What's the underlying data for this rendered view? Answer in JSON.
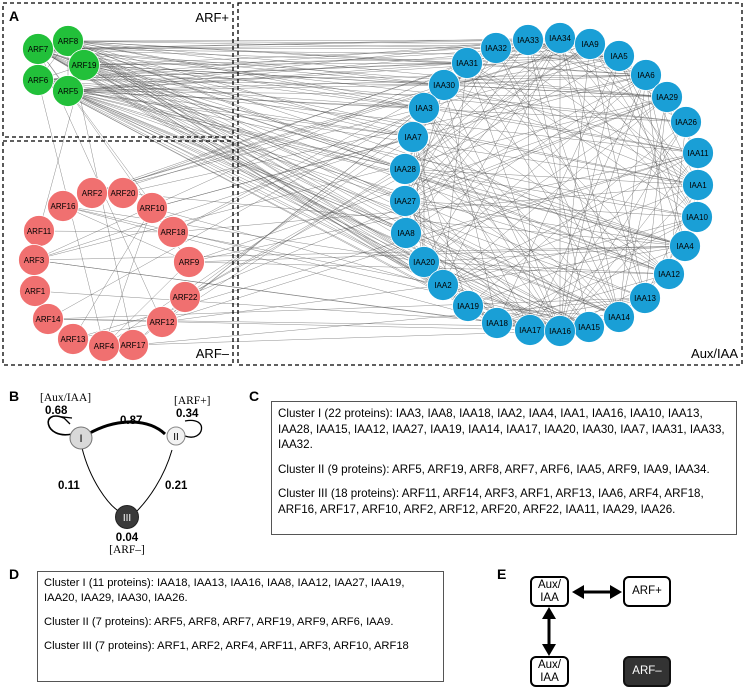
{
  "panel_a": {
    "letter": "A",
    "group_labels": {
      "arf_plus": "ARF+",
      "arf_minus": "ARF–",
      "aux_iaa": "Aux/IAA"
    },
    "colors": {
      "arf_plus": "#22c03a",
      "arf_minus": "#f07070",
      "aux_iaa": "#1a9fd6",
      "edge": "#555555"
    },
    "arf_plus_nodes": [
      "ARF7",
      "ARF8",
      "ARF19",
      "ARF6",
      "ARF5"
    ],
    "arf_minus_nodes": [
      "ARF2",
      "ARF20",
      "ARF16",
      "ARF10",
      "ARF11",
      "ARF18",
      "ARF3",
      "ARF9",
      "ARF1",
      "ARF22",
      "ARF14",
      "ARF12",
      "ARF13",
      "ARF17",
      "ARF4"
    ],
    "aux_iaa_nodes": [
      "IAA33",
      "IAA34",
      "IAA32",
      "IAA9",
      "IAA5",
      "IAA31",
      "IAA30",
      "IAA6",
      "IAA29",
      "IAA3",
      "IAA26",
      "IAA7",
      "IAA11",
      "IAA28",
      "IAA1",
      "IAA27",
      "IAA10",
      "IAA8",
      "IAA4",
      "IAA20",
      "IAA12",
      "IAA2",
      "IAA13",
      "IAA19",
      "IAA14",
      "IAA18",
      "IAA15",
      "IAA17",
      "IAA16"
    ]
  },
  "panel_b": {
    "letter": "B",
    "nodes": [
      {
        "id": "I",
        "label": "I",
        "annotation": "[Aux/IAA]",
        "self_weight": "0.68"
      },
      {
        "id": "II",
        "label": "II",
        "annotation": "[ARF+]",
        "self_weight": "0.34"
      },
      {
        "id": "III",
        "label": "III",
        "annotation": "[ARF–]",
        "self_weight": "0.04"
      }
    ],
    "edges": [
      {
        "from": "I",
        "to": "II",
        "weight": "0.87"
      },
      {
        "from": "I",
        "to": "III",
        "weight": "0.11"
      },
      {
        "from": "II",
        "to": "III",
        "weight": "0.21"
      }
    ]
  },
  "panel_c": {
    "letter": "C",
    "clusters": [
      "Cluster I (22 proteins): IAA3, IAA8, IAA18, IAA2, IAA4, IAA1, IAA16, IAA10, IAA13, IAA28, IAA15, IAA12, IAA27, IAA19, IAA14, IAA17, IAA20, IAA30, IAA7, IAA31, IAA33, IAA32.",
      "Cluster II (9 proteins):  ARF5,  ARF19,  ARF8,  ARF7,  ARF6,  IAA5,  ARF9,  IAA9, IAA34.",
      "Cluster III (18 proteins): ARF11, ARF14, ARF3, ARF1, ARF13, IAA6, ARF4, ARF18, ARF16, ARF17, ARF10, ARF2, ARF12, ARF20, ARF22, IAA11, IAA29, IAA26."
    ]
  },
  "panel_d": {
    "letter": "D",
    "clusters": [
      "Cluster I (11 proteins): IAA18, IAA13, IAA16, IAA8, IAA12, IAA27, IAA19, IAA20, IAA29, IAA30, IAA26.",
      "Cluster II (7 proteins):   ARF5,   ARF8,   ARF7,   ARF19,   ARF9,   ARF6, IAA9.",
      "Cluster III (7 proteins):   ARF1,   ARF2,   ARF4,   ARF11,   ARF3,   ARF10, ARF18"
    ]
  },
  "panel_e": {
    "letter": "E",
    "boxes": {
      "aux_top": "Aux/\nIAA",
      "arf_plus": "ARF+",
      "aux_bottom": "Aux/\nIAA",
      "arf_minus": "ARF–"
    }
  }
}
